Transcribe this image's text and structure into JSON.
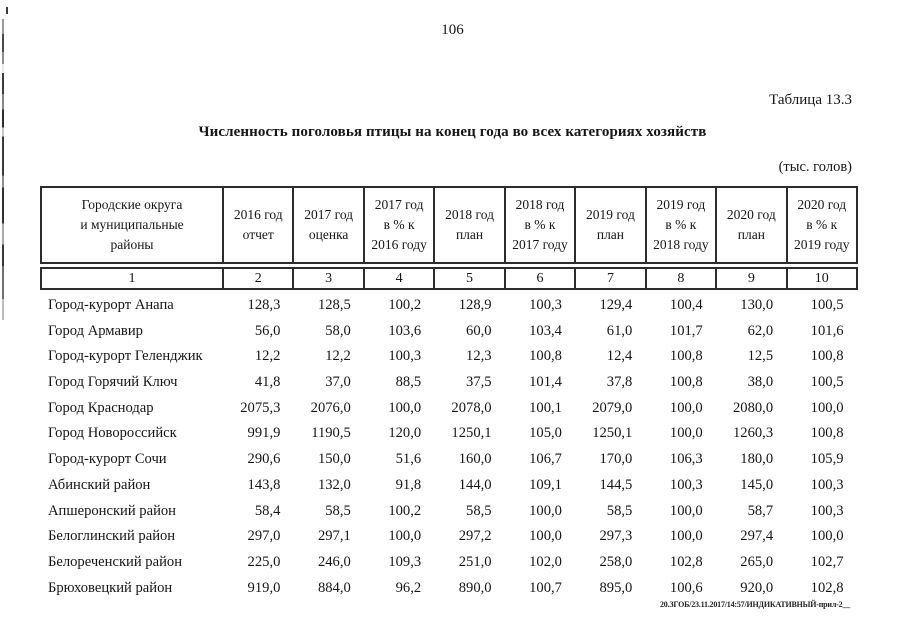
{
  "page": {
    "number": "106",
    "table_label": "Таблица 13.3",
    "title": "Численность поголовья птицы на конец года во всех категориях хозяйств",
    "units": "(тыс. голов)",
    "footer": "20.ЗГОБ/23.11.2017/14:57/ИНДИКАТИВНЫЙ-прил-2__"
  },
  "colors": {
    "text": "#161616",
    "border": "#2c2c2c",
    "background": "#ffffff"
  },
  "table": {
    "columns": [
      {
        "label": "Городские округа\nи муниципальные\nрайоны",
        "num": "1"
      },
      {
        "label": "2016 год\nотчет",
        "num": "2"
      },
      {
        "label": "2017 год\nоценка",
        "num": "3"
      },
      {
        "label": "2017 год\nв % к\n2016 году",
        "num": "4"
      },
      {
        "label": "2018 год\nплан",
        "num": "5"
      },
      {
        "label": "2018 год\nв % к\n2017 году",
        "num": "6"
      },
      {
        "label": "2019 год\nплан",
        "num": "7"
      },
      {
        "label": "2019 год\nв % к\n2018 году",
        "num": "8"
      },
      {
        "label": "2020 год\nплан",
        "num": "9"
      },
      {
        "label": "2020 год\nв % к\n2019 году",
        "num": "10"
      }
    ],
    "rows": [
      {
        "name": "Город-курорт Анапа",
        "values": [
          "128,3",
          "128,5",
          "100,2",
          "128,9",
          "100,3",
          "129,4",
          "100,4",
          "130,0",
          "100,5"
        ]
      },
      {
        "name": "Город Армавир",
        "values": [
          "56,0",
          "58,0",
          "103,6",
          "60,0",
          "103,4",
          "61,0",
          "101,7",
          "62,0",
          "101,6"
        ]
      },
      {
        "name": "Город-курорт Геленджик",
        "values": [
          "12,2",
          "12,2",
          "100,3",
          "12,3",
          "100,8",
          "12,4",
          "100,8",
          "12,5",
          "100,8"
        ]
      },
      {
        "name": "Город Горячий Ключ",
        "values": [
          "41,8",
          "37,0",
          "88,5",
          "37,5",
          "101,4",
          "37,8",
          "100,8",
          "38,0",
          "100,5"
        ]
      },
      {
        "name": "Город Краснодар",
        "values": [
          "2075,3",
          "2076,0",
          "100,0",
          "2078,0",
          "100,1",
          "2079,0",
          "100,0",
          "2080,0",
          "100,0"
        ]
      },
      {
        "name": "Город Новороссийск",
        "values": [
          "991,9",
          "1190,5",
          "120,0",
          "1250,1",
          "105,0",
          "1250,1",
          "100,0",
          "1260,3",
          "100,8"
        ]
      },
      {
        "name": "Город-курорт Сочи",
        "values": [
          "290,6",
          "150,0",
          "51,6",
          "160,0",
          "106,7",
          "170,0",
          "106,3",
          "180,0",
          "105,9"
        ]
      },
      {
        "name": "Абинский район",
        "values": [
          "143,8",
          "132,0",
          "91,8",
          "144,0",
          "109,1",
          "144,5",
          "100,3",
          "145,0",
          "100,3"
        ]
      },
      {
        "name": "Апшеронский район",
        "values": [
          "58,4",
          "58,5",
          "100,2",
          "58,5",
          "100,0",
          "58,5",
          "100,0",
          "58,7",
          "100,3"
        ]
      },
      {
        "name": "Белоглинский район",
        "values": [
          "297,0",
          "297,1",
          "100,0",
          "297,2",
          "100,0",
          "297,3",
          "100,0",
          "297,4",
          "100,0"
        ]
      },
      {
        "name": "Белореченский район",
        "values": [
          "225,0",
          "246,0",
          "109,3",
          "251,0",
          "102,0",
          "258,0",
          "102,8",
          "265,0",
          "102,7"
        ]
      },
      {
        "name": "Брюховецкий район",
        "values": [
          "919,0",
          "884,0",
          "96,2",
          "890,0",
          "100,7",
          "895,0",
          "100,6",
          "920,0",
          "102,8"
        ]
      }
    ]
  }
}
